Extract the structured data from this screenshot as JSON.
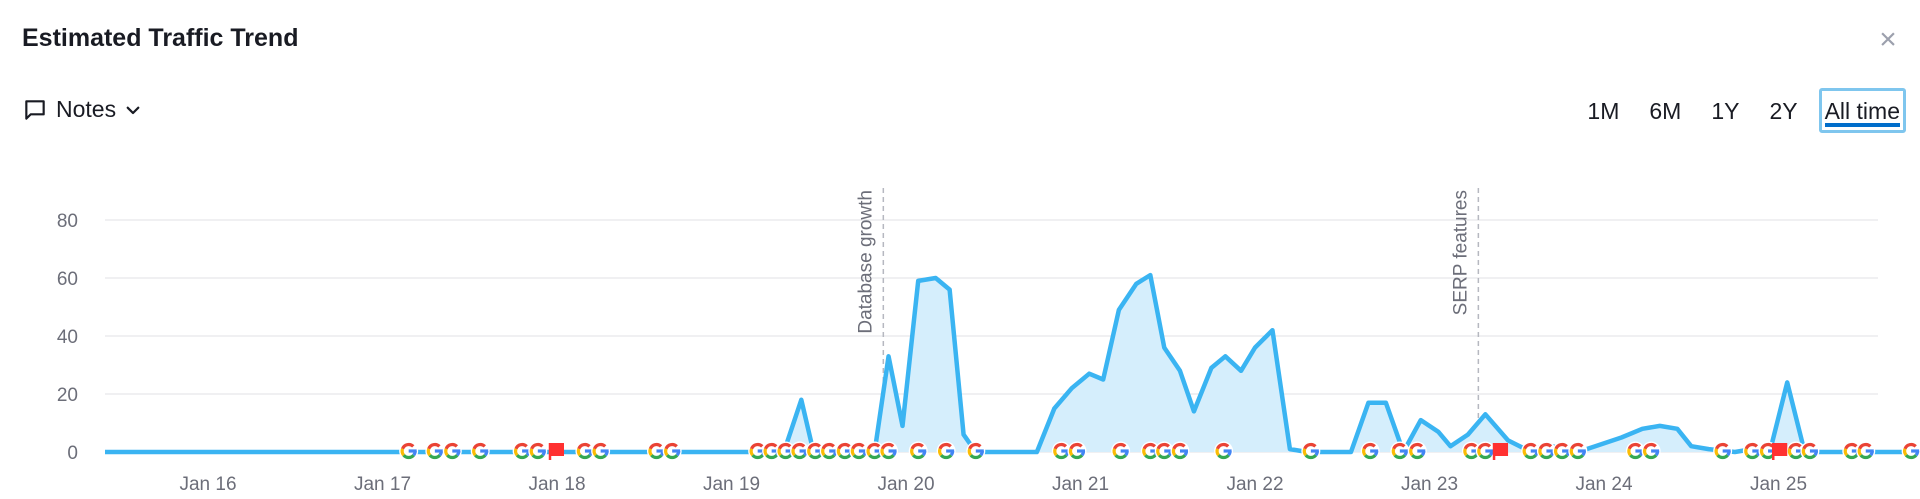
{
  "header": {
    "title": "Estimated Traffic Trend",
    "close_label": "×"
  },
  "toolbar": {
    "notes_label": "Notes",
    "ranges": [
      {
        "label": "1M",
        "active": false
      },
      {
        "label": "6M",
        "active": false
      },
      {
        "label": "1Y",
        "active": false
      },
      {
        "label": "2Y",
        "active": false
      },
      {
        "label": "All time",
        "active": true
      }
    ]
  },
  "chart_data": {
    "type": "area",
    "xlabel": "",
    "ylabel": "",
    "ylim": [
      0,
      80
    ],
    "yticks": [
      0,
      20,
      40,
      60,
      80
    ],
    "xlim": [
      0,
      10.35
    ],
    "xticks": [
      {
        "x": 0,
        "label": "Jan 16"
      },
      {
        "x": 1,
        "label": "Jan 17"
      },
      {
        "x": 2,
        "label": "Jan 18"
      },
      {
        "x": 3,
        "label": "Jan 19"
      },
      {
        "x": 4,
        "label": "Jan 20"
      },
      {
        "x": 5,
        "label": "Jan 21"
      },
      {
        "x": 6,
        "label": "Jan 22"
      },
      {
        "x": 7,
        "label": "Jan 23"
      },
      {
        "x": 8,
        "label": "Jan 24"
      },
      {
        "x": 9,
        "label": "Jan 25"
      }
    ],
    "grid": true,
    "colors": {
      "line": "#3ab4f2",
      "fill": "#d5eefc",
      "grid": "#e0e1e6",
      "google_blue": "#4285f4",
      "google_red": "#ea4335",
      "google_yellow": "#fbbc05",
      "google_green": "#34a853",
      "flag": "#ff3131"
    },
    "series": [
      {
        "values": [
          [
            -0.6,
            0
          ],
          [
            3.3,
            0
          ],
          [
            3.4,
            18
          ],
          [
            3.47,
            0
          ],
          [
            3.82,
            0
          ],
          [
            3.9,
            33
          ],
          [
            3.98,
            9
          ],
          [
            4.07,
            59
          ],
          [
            4.17,
            60
          ],
          [
            4.25,
            56
          ],
          [
            4.33,
            6
          ],
          [
            4.4,
            0
          ],
          [
            4.75,
            0
          ],
          [
            4.85,
            15
          ],
          [
            4.95,
            22
          ],
          [
            5.05,
            27
          ],
          [
            5.13,
            25
          ],
          [
            5.22,
            49
          ],
          [
            5.32,
            58
          ],
          [
            5.4,
            61
          ],
          [
            5.48,
            36
          ],
          [
            5.57,
            28
          ],
          [
            5.65,
            14
          ],
          [
            5.75,
            29
          ],
          [
            5.83,
            33
          ],
          [
            5.92,
            28
          ],
          [
            6.0,
            36
          ],
          [
            6.1,
            42
          ],
          [
            6.2,
            1
          ],
          [
            6.3,
            0
          ],
          [
            6.55,
            0
          ],
          [
            6.65,
            17
          ],
          [
            6.75,
            17
          ],
          [
            6.85,
            0
          ],
          [
            6.95,
            11
          ],
          [
            7.05,
            7
          ],
          [
            7.12,
            2
          ],
          [
            7.22,
            6
          ],
          [
            7.32,
            13
          ],
          [
            7.45,
            4
          ],
          [
            7.55,
            1
          ],
          [
            7.7,
            2
          ],
          [
            7.85,
            0
          ],
          [
            7.95,
            2
          ],
          [
            8.1,
            5
          ],
          [
            8.22,
            8
          ],
          [
            8.32,
            9
          ],
          [
            8.42,
            8
          ],
          [
            8.5,
            2
          ],
          [
            8.6,
            1
          ],
          [
            8.75,
            0
          ],
          [
            8.85,
            1
          ],
          [
            8.95,
            0
          ],
          [
            9.05,
            24
          ],
          [
            9.15,
            0
          ],
          [
            10.15,
            0
          ]
        ]
      }
    ],
    "annotations": [
      {
        "x": 3.87,
        "label": "Database growth"
      },
      {
        "x": 7.28,
        "label": "SERP features"
      }
    ],
    "google_markers": [
      1.15,
      1.3,
      1.4,
      1.56,
      1.8,
      1.89,
      2.16,
      2.25,
      2.57,
      2.66,
      3.15,
      3.23,
      3.31,
      3.39,
      3.48,
      3.56,
      3.65,
      3.73,
      3.82,
      3.9,
      4.07,
      4.23,
      4.4,
      4.89,
      4.98,
      5.23,
      5.4,
      5.48,
      5.57,
      5.82,
      6.32,
      6.66,
      6.83,
      6.93,
      7.24,
      7.32,
      7.58,
      7.67,
      7.76,
      7.85,
      8.18,
      8.27,
      8.68,
      8.85,
      8.94,
      9.1,
      9.18,
      9.42,
      9.5,
      9.76
    ],
    "flag_markers": [
      2.0,
      7.41,
      9.01
    ],
    "highlight_band": [
      10.0,
      10.1
    ]
  }
}
